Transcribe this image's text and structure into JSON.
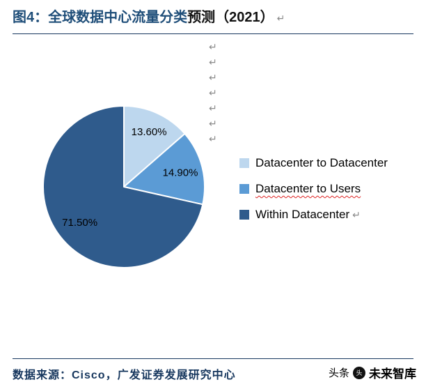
{
  "page": {
    "title_main": "图4：全球数据中心流量分类",
    "title_suffix": "预测（2021）",
    "pilcrow": "↵"
  },
  "chart_data": {
    "type": "pie",
    "title": "全球数据中心流量分类预测（2021）",
    "legend_position": "right",
    "start_angle_deg": 0,
    "direction": "clockwise",
    "label_color": "#000000",
    "slices": [
      {
        "label": "Datacenter to Datacenter",
        "value": 13.6,
        "display": "13.60%",
        "color": "#BDD7EE"
      },
      {
        "label": "Datacenter to Users",
        "value": 14.9,
        "display": "14.90%",
        "color": "#5B9BD5",
        "spellcheck_underline": true
      },
      {
        "label": "Within Datacenter",
        "value": 71.5,
        "display": "71.50%",
        "color": "#2F5B8C",
        "trailing_mark": true
      }
    ]
  },
  "paragraph_marks": [
    "↵",
    "↵",
    "↵",
    "↵",
    "↵",
    "↵",
    "↵"
  ],
  "source": {
    "text": "数据来源：Cisco，广发证券发展研究中心"
  },
  "watermark": {
    "prefix": "头条",
    "logo_glyph": "头",
    "name": "未来智库"
  }
}
